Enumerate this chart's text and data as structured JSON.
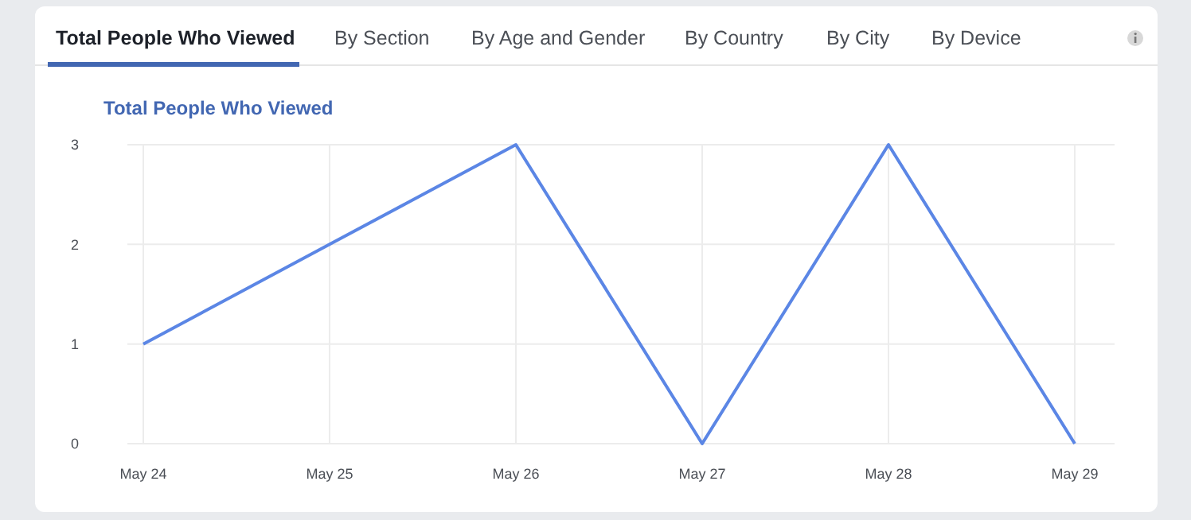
{
  "chart_data": {
    "type": "line",
    "title": "Total People Who Viewed",
    "annotations": [
      "Total People Who Viewed",
      "By Section",
      "By Age and Gender",
      "By Country",
      "By City",
      "By Device"
    ],
    "categories": [
      "May 24",
      "May 25",
      "May 26",
      "May 27",
      "May 28",
      "May 29"
    ],
    "series": [
      {
        "color": "#5b86e5",
        "values": [
          1,
          2,
          3,
          0,
          3,
          0
        ]
      }
    ],
    "ylim": [
      0,
      3
    ],
    "yticks": [
      0,
      1,
      2,
      3
    ],
    "grid": true,
    "marker": "none",
    "line_style": "solid"
  }
}
